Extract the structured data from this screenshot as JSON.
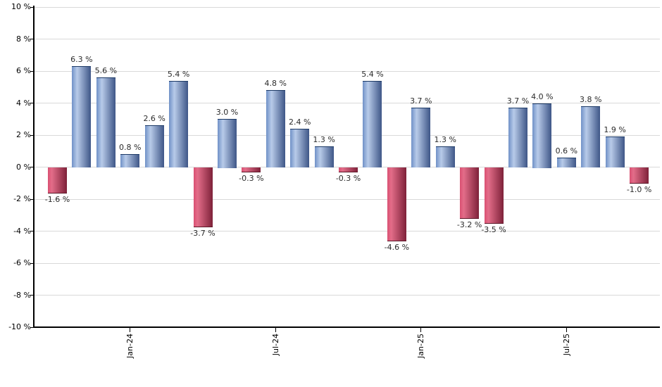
{
  "chart_data": {
    "type": "bar",
    "title": "",
    "xlabel": "",
    "ylabel": "",
    "values": [
      -1.6,
      6.3,
      5.6,
      0.8,
      2.6,
      5.4,
      -3.7,
      3.0,
      -0.3,
      4.8,
      2.4,
      1.3,
      -0.3,
      5.4,
      -4.6,
      3.7,
      1.3,
      -3.2,
      -3.5,
      3.7,
      4.0,
      0.6,
      3.8,
      1.9,
      -1.0
    ],
    "bar_labels": [
      "-1.6 %",
      "6.3 %",
      "5.6 %",
      "0.8 %",
      "2.6 %",
      "5.4 %",
      "-3.7 %",
      "3.0 %",
      "-0.3 %",
      "4.8 %",
      "2.4 %",
      "1.3 %",
      "-0.3 %",
      "5.4 %",
      "-4.6 %",
      "3.7 %",
      "1.3 %",
      "-3.2 %",
      "-3.5 %",
      "3.7 %",
      "4.0 %",
      "0.6 %",
      "3.8 %",
      "1.9 %",
      "-1.0 %"
    ],
    "x_ticks": [
      {
        "label": "Jan-24",
        "bar_index": 3
      },
      {
        "label": "Jul-24",
        "bar_index": 9
      },
      {
        "label": "Jan-25",
        "bar_index": 15
      },
      {
        "label": "Jul-25",
        "bar_index": 21
      }
    ],
    "y_tick_labels": [
      "10 %",
      "8 %",
      "6 %",
      "4 %",
      "2 %",
      "0 %",
      "-2 %",
      "-4 %",
      "-6 %",
      "-8 %",
      "-10 %"
    ],
    "ylim": [
      -10,
      10
    ],
    "y_step": 2,
    "grid": true,
    "legend": false,
    "colors": {
      "positive_edge": "#7091c7",
      "positive_highlight": "#b8cbe9",
      "positive_dark": "#3e5687",
      "positive_border": "#1d3a66",
      "negative_edge": "#d94f72",
      "negative_highlight": "#e36d89",
      "negative_dark": "#7e2139",
      "negative_border": "#5d1728",
      "gridline": "#d9d9d9",
      "axis": "#000000",
      "label_text": "#2b2b2b"
    }
  }
}
